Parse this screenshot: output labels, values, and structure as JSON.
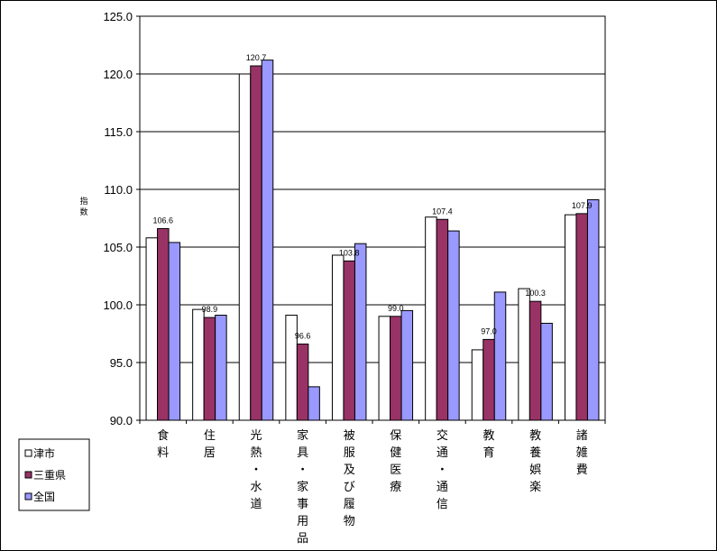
{
  "chart_data": {
    "type": "bar",
    "ylabel": "指数",
    "ylim": [
      90,
      125
    ],
    "yticks": [
      "90.0",
      "95.0",
      "100.0",
      "105.0",
      "110.0",
      "115.0",
      "120.0",
      "125.0"
    ],
    "grid": true,
    "legend_position": "bottom-left",
    "categories": [
      "食料",
      "住居",
      "光熱・水道",
      "家具・家事用品",
      "被服及び履物",
      "保健医療",
      "交通・通信",
      "教育",
      "教養娯楽",
      "諸雑費"
    ],
    "series": [
      {
        "name": "津市",
        "color": "#ffffff",
        "values": [
          105.8,
          99.6,
          120.0,
          99.1,
          104.3,
          99.0,
          107.6,
          96.1,
          101.4,
          107.8
        ]
      },
      {
        "name": "三重県",
        "color": "#993366",
        "values": [
          106.6,
          98.9,
          120.7,
          96.6,
          103.8,
          99.0,
          107.4,
          97.0,
          100.3,
          107.9
        ]
      },
      {
        "name": "全国",
        "color": "#9999ff",
        "values": [
          105.4,
          99.1,
          121.2,
          92.9,
          105.3,
          99.5,
          106.4,
          101.1,
          98.4,
          109.1
        ]
      }
    ],
    "data_labels": [
      {
        "category": "食料",
        "series": "三重県",
        "text": "106.6"
      },
      {
        "category": "住居",
        "series": "三重県",
        "text": "98.9"
      },
      {
        "category": "光熱・水道",
        "series": "三重県",
        "text": "120.7"
      },
      {
        "category": "家具・家事用品",
        "series": "三重県",
        "text": "96.6"
      },
      {
        "category": "被服及び履物",
        "series": "三重県",
        "text": "103.8"
      },
      {
        "category": "保健医療",
        "series": "三重県",
        "text": "99.0"
      },
      {
        "category": "交通・通信",
        "series": "三重県",
        "text": "107.4"
      },
      {
        "category": "教育",
        "series": "三重県",
        "text": "97.0"
      },
      {
        "category": "教養娯楽",
        "series": "三重県",
        "text": "100.3"
      },
      {
        "category": "諸雑費",
        "series": "三重県",
        "text": "107.9"
      }
    ]
  }
}
